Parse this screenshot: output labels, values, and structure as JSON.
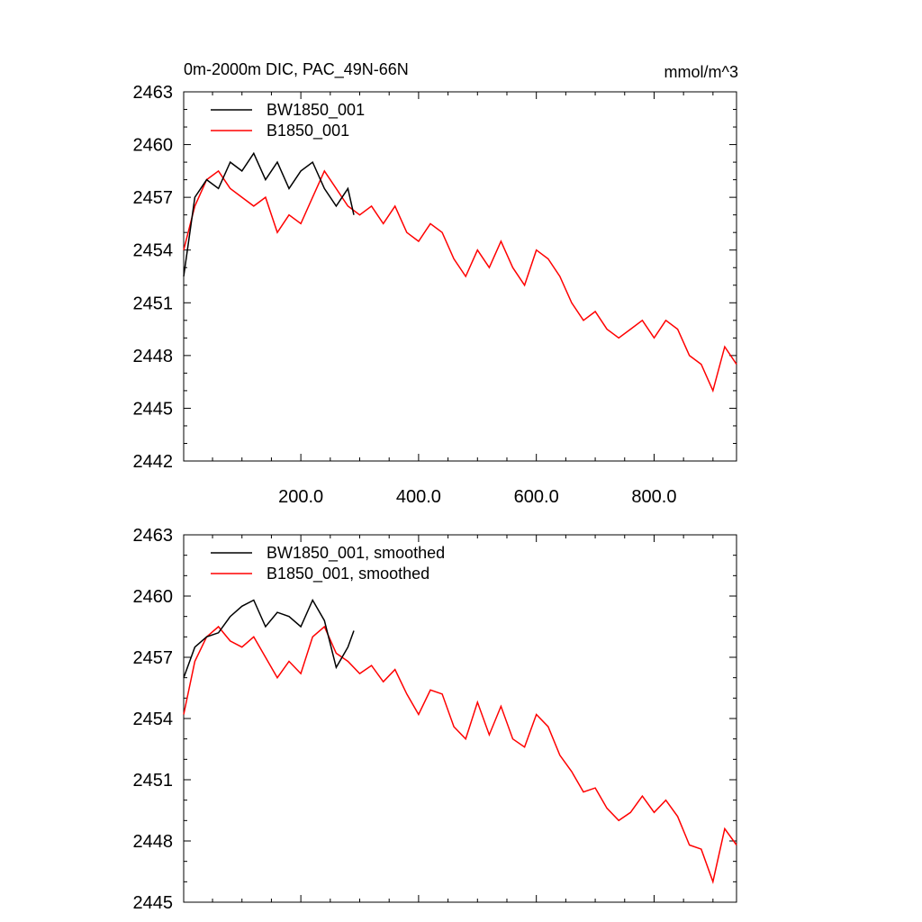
{
  "chart_data": [
    {
      "type": "line",
      "title": "0m-2000m DIC, PAC_49N-66N",
      "units": "mmol/m^3",
      "xlabel": "",
      "ylabel": "",
      "xlim": [
        1,
        940
      ],
      "ylim": [
        2442,
        2463
      ],
      "y_ticks": [
        2442,
        2445,
        2448,
        2451,
        2454,
        2457,
        2460,
        2463
      ],
      "y_tick_labels": [
        "2442",
        "2445",
        "2448",
        "2451",
        "2454",
        "2457",
        "2460",
        "2463"
      ],
      "x_ticks": [
        200,
        400,
        600,
        800
      ],
      "x_tick_labels": [
        "200.0",
        "400.0",
        "600.0",
        "800.0"
      ],
      "legend_position": "top-left",
      "series": [
        {
          "name": "BW1850_001",
          "color": "#000000",
          "x": [
            1,
            20,
            40,
            60,
            80,
            100,
            120,
            140,
            160,
            180,
            200,
            220,
            240,
            260,
            280,
            290
          ],
          "values": [
            2452.5,
            2457.0,
            2458.0,
            2457.5,
            2459.0,
            2458.5,
            2459.5,
            2458.0,
            2459.0,
            2457.5,
            2458.5,
            2459.0,
            2457.5,
            2456.5,
            2457.5,
            2456.0
          ]
        },
        {
          "name": "B1850_001",
          "color": "#ff0000",
          "x": [
            1,
            20,
            40,
            60,
            80,
            100,
            120,
            140,
            160,
            180,
            200,
            220,
            240,
            260,
            280,
            300,
            320,
            340,
            360,
            380,
            400,
            420,
            440,
            460,
            480,
            500,
            520,
            540,
            560,
            580,
            600,
            620,
            640,
            660,
            680,
            700,
            720,
            740,
            760,
            780,
            800,
            820,
            840,
            860,
            880,
            900,
            920,
            940
          ],
          "values": [
            2454.0,
            2456.5,
            2458.0,
            2458.5,
            2457.5,
            2457.0,
            2456.5,
            2457.0,
            2455.0,
            2456.0,
            2455.5,
            2457.0,
            2458.5,
            2457.5,
            2456.5,
            2456.0,
            2456.5,
            2455.5,
            2456.5,
            2455.0,
            2454.5,
            2455.5,
            2455.0,
            2453.5,
            2452.5,
            2454.0,
            2453.0,
            2454.5,
            2453.0,
            2452.0,
            2454.0,
            2453.5,
            2452.5,
            2451.0,
            2450.0,
            2450.5,
            2449.5,
            2449.0,
            2449.5,
            2450.0,
            2449.0,
            2450.0,
            2449.5,
            2448.0,
            2447.5,
            2446.0,
            2448.5,
            2447.5
          ]
        }
      ]
    },
    {
      "type": "line",
      "title": "",
      "xlabel": "",
      "ylabel": "",
      "xlim": [
        1,
        940
      ],
      "ylim": [
        2445,
        2463
      ],
      "y_ticks": [
        2445,
        2448,
        2451,
        2454,
        2457,
        2460,
        2463
      ],
      "y_tick_labels": [
        "2445",
        "2448",
        "2451",
        "2454",
        "2457",
        "2460",
        "2463"
      ],
      "x_ticks": [
        200,
        400,
        600,
        800
      ],
      "x_tick_labels": [],
      "legend_position": "top-left",
      "series": [
        {
          "name": "BW1850_001, smoothed",
          "color": "#000000",
          "x": [
            1,
            20,
            40,
            60,
            80,
            100,
            120,
            140,
            160,
            180,
            200,
            220,
            240,
            260,
            280,
            290
          ],
          "values": [
            2456.0,
            2457.5,
            2458.0,
            2458.2,
            2459.0,
            2459.5,
            2459.8,
            2458.5,
            2459.2,
            2459.0,
            2458.5,
            2459.8,
            2458.8,
            2456.5,
            2457.5,
            2458.3
          ]
        },
        {
          "name": "B1850_001, smoothed",
          "color": "#ff0000",
          "x": [
            1,
            20,
            40,
            60,
            80,
            100,
            120,
            140,
            160,
            180,
            200,
            220,
            240,
            260,
            280,
            300,
            320,
            340,
            360,
            380,
            400,
            420,
            440,
            460,
            480,
            500,
            520,
            540,
            560,
            580,
            600,
            620,
            640,
            660,
            680,
            700,
            720,
            740,
            760,
            780,
            800,
            820,
            840,
            860,
            880,
            900,
            920,
            940
          ],
          "values": [
            2454.2,
            2456.8,
            2458.0,
            2458.5,
            2457.8,
            2457.5,
            2458.0,
            2457.0,
            2456.0,
            2456.8,
            2456.2,
            2458.0,
            2458.5,
            2457.2,
            2456.8,
            2456.2,
            2456.6,
            2455.8,
            2456.4,
            2455.2,
            2454.2,
            2455.4,
            2455.2,
            2453.6,
            2453.0,
            2454.8,
            2453.2,
            2454.6,
            2453.0,
            2452.6,
            2454.2,
            2453.6,
            2452.2,
            2451.4,
            2450.4,
            2450.6,
            2449.6,
            2449.0,
            2449.4,
            2450.2,
            2449.4,
            2450.0,
            2449.2,
            2447.8,
            2447.6,
            2446.0,
            2448.6,
            2447.8
          ]
        }
      ]
    }
  ]
}
